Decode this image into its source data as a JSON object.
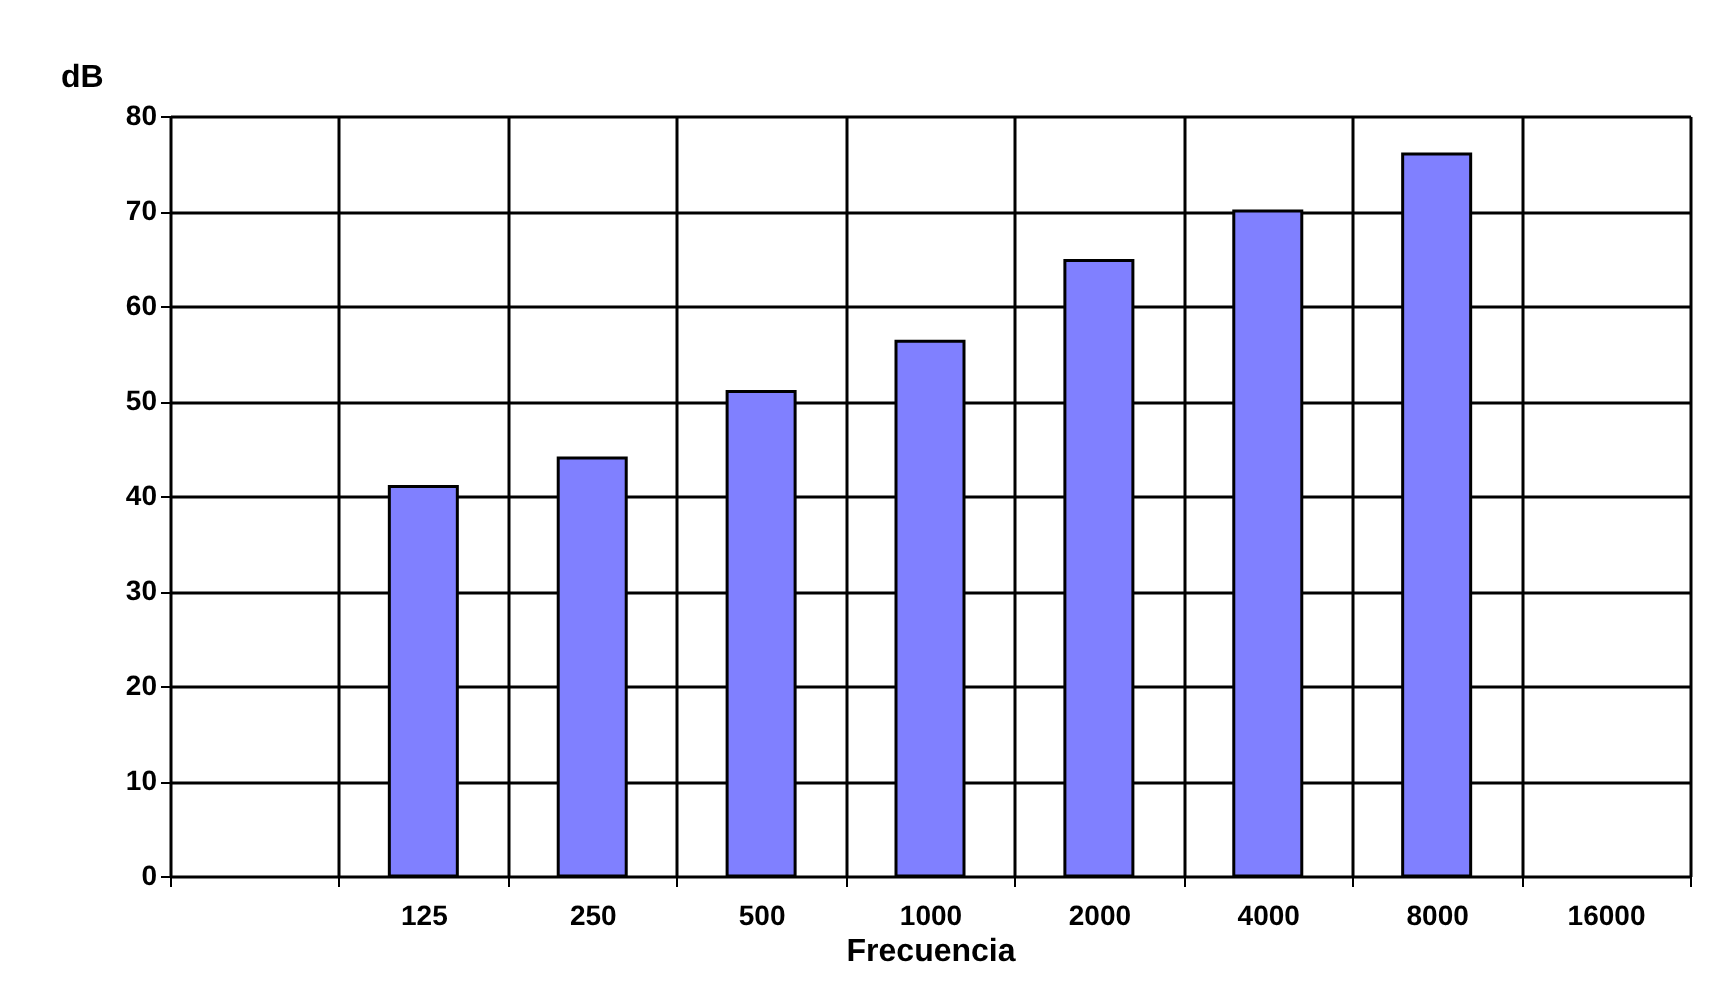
{
  "chart_data": {
    "type": "bar",
    "xlabel": "Frecuencia",
    "ylabel": "dB",
    "categories": [
      null,
      "125",
      "250",
      "500",
      "1000",
      "2000",
      "4000",
      "8000",
      "16000"
    ],
    "values": [
      null,
      41,
      44,
      51,
      56.3,
      64.8,
      70,
      76,
      null
    ],
    "color": "#8080ff",
    "ylim": [
      0,
      80
    ],
    "yticks": [
      0,
      10,
      20,
      30,
      40,
      50,
      60,
      70,
      80
    ],
    "grid": true
  }
}
